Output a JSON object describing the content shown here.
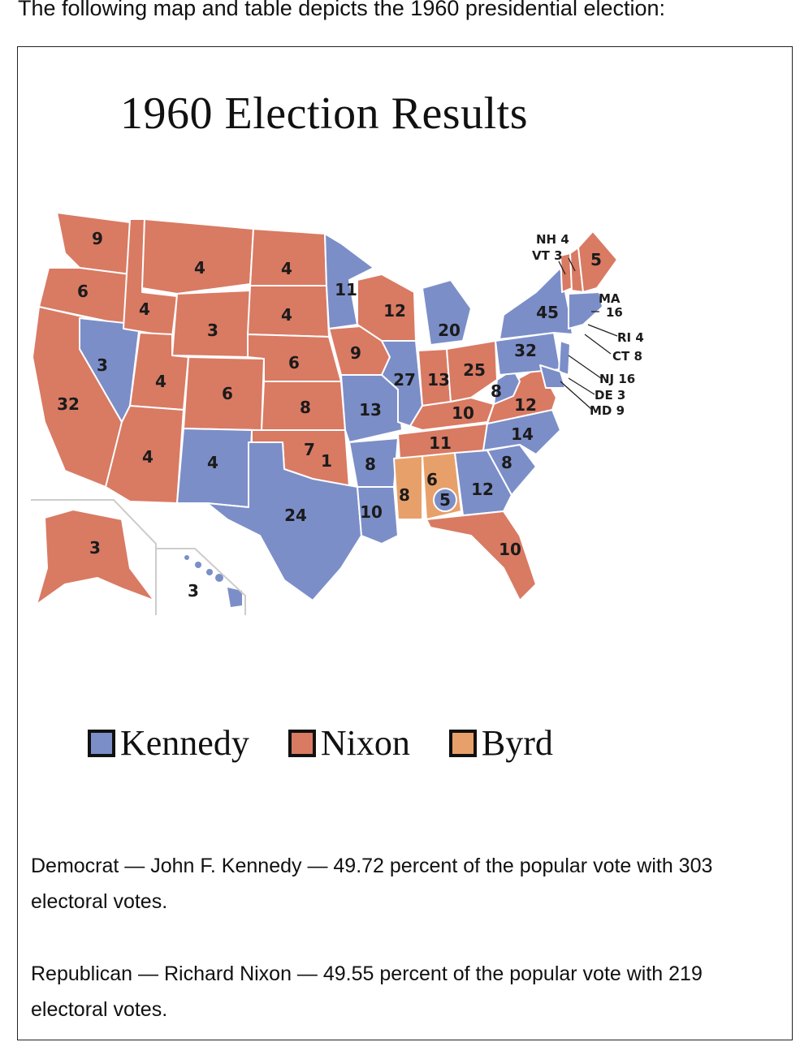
{
  "intro": "The following map and table depicts the 1960 presidential election:",
  "map": {
    "title": "1960 Election Results",
    "colors": {
      "kennedy": "#7b8ec8",
      "nixon": "#d97a63",
      "byrd": "#e8a06a",
      "border": "#ffffff"
    },
    "states": [
      {
        "abbr": "WA",
        "votes": "9",
        "winner": "Nixon"
      },
      {
        "abbr": "OR",
        "votes": "6",
        "winner": "Nixon"
      },
      {
        "abbr": "CA",
        "votes": "32",
        "winner": "Nixon"
      },
      {
        "abbr": "ID",
        "votes": "4",
        "winner": "Nixon"
      },
      {
        "abbr": "NV",
        "votes": "3",
        "winner": "Kennedy"
      },
      {
        "abbr": "MT",
        "votes": "4",
        "winner": "Nixon"
      },
      {
        "abbr": "WY",
        "votes": "3",
        "winner": "Nixon"
      },
      {
        "abbr": "UT",
        "votes": "4",
        "winner": "Nixon"
      },
      {
        "abbr": "CO",
        "votes": "6",
        "winner": "Nixon"
      },
      {
        "abbr": "AZ",
        "votes": "4",
        "winner": "Nixon"
      },
      {
        "abbr": "NM",
        "votes": "4",
        "winner": "Kennedy"
      },
      {
        "abbr": "ND",
        "votes": "4",
        "winner": "Nixon"
      },
      {
        "abbr": "SD",
        "votes": "4",
        "winner": "Nixon"
      },
      {
        "abbr": "NE",
        "votes": "6",
        "winner": "Nixon"
      },
      {
        "abbr": "KS",
        "votes": "8",
        "winner": "Nixon"
      },
      {
        "abbr": "OK",
        "votes": "7",
        "winner": "Nixon"
      },
      {
        "abbr": "OK-Byrd",
        "votes": "1",
        "winner": "Byrd"
      },
      {
        "abbr": "TX",
        "votes": "24",
        "winner": "Kennedy"
      },
      {
        "abbr": "MN",
        "votes": "11",
        "winner": "Kennedy"
      },
      {
        "abbr": "IA",
        "votes": "9",
        "winner": "Nixon"
      },
      {
        "abbr": "MO",
        "votes": "13",
        "winner": "Kennedy"
      },
      {
        "abbr": "AR",
        "votes": "8",
        "winner": "Kennedy"
      },
      {
        "abbr": "LA",
        "votes": "10",
        "winner": "Kennedy"
      },
      {
        "abbr": "WI",
        "votes": "12",
        "winner": "Nixon"
      },
      {
        "abbr": "IL",
        "votes": "27",
        "winner": "Kennedy"
      },
      {
        "abbr": "MI",
        "votes": "20",
        "winner": "Kennedy"
      },
      {
        "abbr": "IN",
        "votes": "13",
        "winner": "Nixon"
      },
      {
        "abbr": "OH",
        "votes": "25",
        "winner": "Nixon"
      },
      {
        "abbr": "KY",
        "votes": "10",
        "winner": "Nixon"
      },
      {
        "abbr": "TN",
        "votes": "11",
        "winner": "Nixon"
      },
      {
        "abbr": "MS",
        "votes": "8",
        "winner": "Byrd"
      },
      {
        "abbr": "AL",
        "votes": "6",
        "winner": "Byrd"
      },
      {
        "abbr": "AL-Kennedy",
        "votes": "5",
        "winner": "Kennedy"
      },
      {
        "abbr": "GA",
        "votes": "12",
        "winner": "Kennedy"
      },
      {
        "abbr": "FL",
        "votes": "10",
        "winner": "Nixon"
      },
      {
        "abbr": "SC",
        "votes": "8",
        "winner": "Kennedy"
      },
      {
        "abbr": "NC",
        "votes": "14",
        "winner": "Kennedy"
      },
      {
        "abbr": "VA",
        "votes": "12",
        "winner": "Nixon"
      },
      {
        "abbr": "WV",
        "votes": "8",
        "winner": "Kennedy"
      },
      {
        "abbr": "PA",
        "votes": "32",
        "winner": "Kennedy"
      },
      {
        "abbr": "NY",
        "votes": "45",
        "winner": "Kennedy"
      },
      {
        "abbr": "ME",
        "votes": "5",
        "winner": "Nixon"
      },
      {
        "abbr": "AK",
        "votes": "3",
        "winner": "Nixon"
      },
      {
        "abbr": "HI",
        "votes": "3",
        "winner": "Kennedy"
      }
    ],
    "callouts": {
      "nh": "NH 4",
      "vt": "VT 3",
      "ma_name": "MA",
      "ma_votes": "16",
      "ri": "RI 4",
      "ct": "CT 8",
      "nj": "NJ 16",
      "de": "DE 3",
      "md": "MD 9"
    }
  },
  "legend": [
    {
      "label": "Kennedy",
      "color": "#7b8ec8"
    },
    {
      "label": "Nixon",
      "color": "#d97a63"
    },
    {
      "label": "Byrd",
      "color": "#e8a06a"
    }
  ],
  "notes": {
    "democrat": "Democrat — John F. Kennedy — 49.72 percent of the popular vote with 303 electoral votes.",
    "republican": "Republican — Richard Nixon — 49.55 percent of the popular vote with 219 electoral votes."
  }
}
